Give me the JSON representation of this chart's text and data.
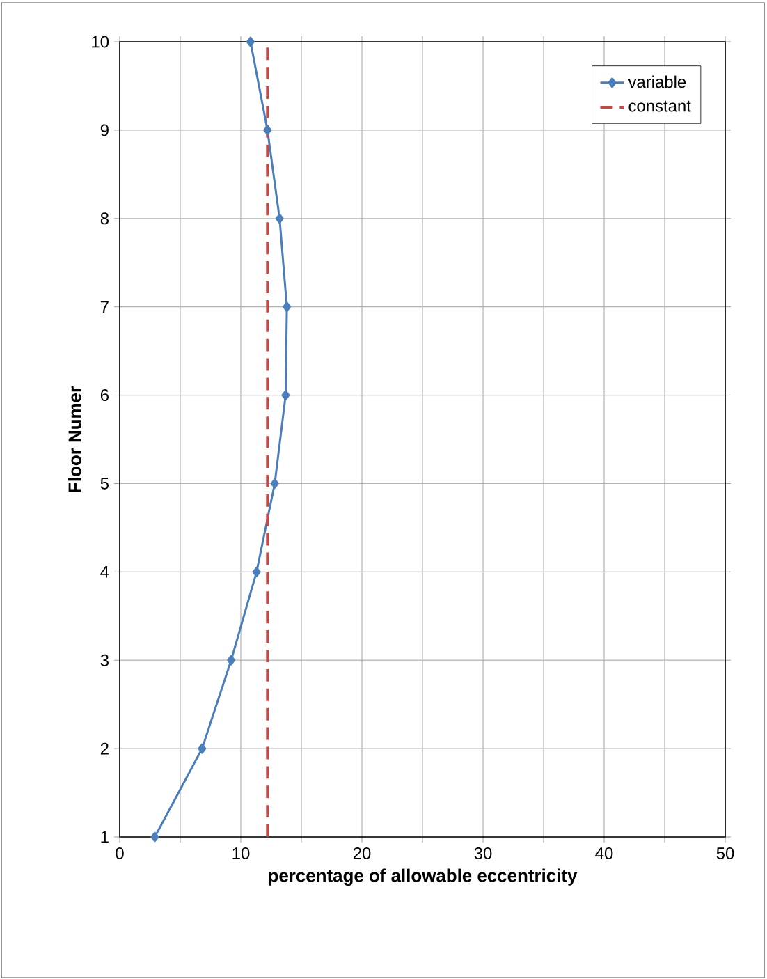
{
  "chart_data": {
    "type": "line",
    "xlabel": "percentage of allowable eccentricity",
    "ylabel": "Floor Numer",
    "xlim": [
      0,
      50
    ],
    "xticks": [
      0,
      {
        "value": 5,
        "label": null
      },
      10,
      {
        "value": 15,
        "label": null
      },
      20,
      {
        "value": 25,
        "label": null
      },
      30,
      {
        "value": 35,
        "label": null
      },
      40,
      {
        "value": 45,
        "label": null
      },
      50
    ],
    "ylim": [
      1,
      10
    ],
    "yticks": [
      1,
      2,
      3,
      4,
      5,
      6,
      7,
      8,
      9,
      10
    ],
    "grid": true,
    "legend": "top right",
    "series": [
      {
        "name": "variable",
        "color": "#4a7ebb",
        "marker": "diamond",
        "line_style": "solid",
        "x": [
          2.9,
          6.8,
          9.2,
          11.3,
          12.8,
          13.7,
          13.8,
          13.2,
          12.2,
          10.8
        ],
        "values": [
          1,
          2,
          3,
          4,
          5,
          6,
          7,
          8,
          9,
          10
        ]
      },
      {
        "name": "constant",
        "color": "#be4b48",
        "marker": "none",
        "line_style": "dashed",
        "x": [
          12.2,
          12.2
        ],
        "values": [
          1,
          10
        ]
      }
    ]
  }
}
